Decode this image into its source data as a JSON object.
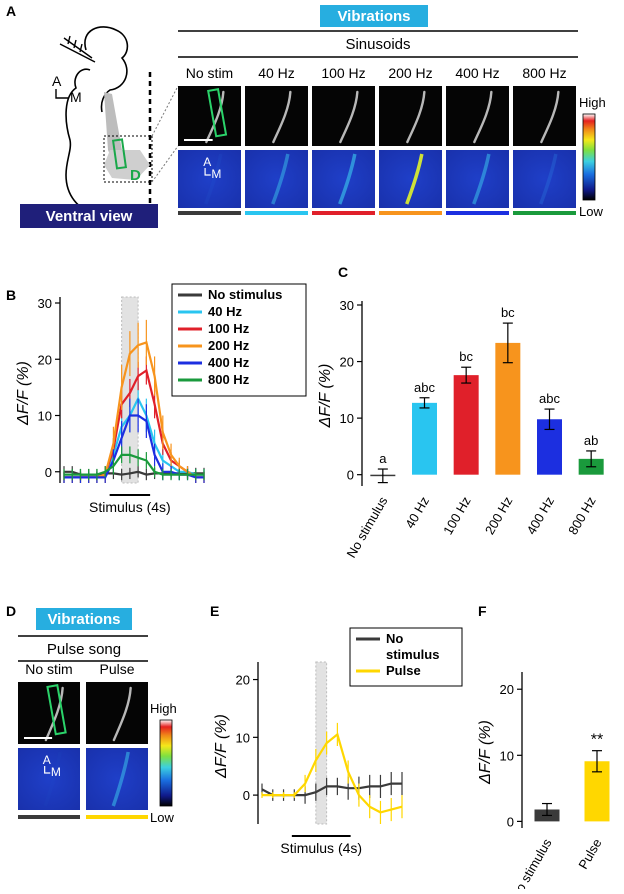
{
  "panels": {
    "A": "A",
    "B": "B",
    "C": "C",
    "D": "D",
    "E": "E",
    "F": "F"
  },
  "panelA": {
    "banner": "Vibrations",
    "subtitle": "Sinusoids",
    "conditions": [
      "No stim",
      "40 Hz",
      "100 Hz",
      "200 Hz",
      "400 Hz",
      "800 Hz"
    ],
    "condition_colors": [
      "#3a3a3a",
      "#29c5f0",
      "#e0202a",
      "#f7941d",
      "#1c2fe0",
      "#1a9a3c"
    ],
    "axes_A": "A",
    "axes_M": "M",
    "roi_label": "D",
    "view_label": "Ventral view",
    "scale_high": "High",
    "scale_low": "Low",
    "inset_A": "A",
    "inset_M": "M"
  },
  "panelD": {
    "banner": "Vibrations",
    "subtitle": "Pulse song",
    "conditions": [
      "No stim",
      "Pulse"
    ],
    "condition_colors": [
      "#3a3a3a",
      "#ffd700"
    ],
    "scale_high": "High",
    "scale_low": "Low",
    "inset_A": "A",
    "inset_M": "M"
  },
  "chart_data": [
    {
      "id": "B",
      "type": "line",
      "ylabel": "ΔF/F (%)",
      "xlabel": "Stimulus (4s)",
      "ylim": [
        -2,
        30
      ],
      "yticks": [
        0,
        10,
        20,
        30
      ],
      "x": [
        0,
        1,
        2,
        3,
        4,
        5,
        6,
        7,
        8,
        9,
        10,
        11,
        12,
        13,
        14,
        15,
        16,
        17
      ],
      "stimulus_window": [
        7,
        9
      ],
      "series": [
        {
          "name": "No stimulus",
          "color": "#3a3a3a",
          "values": [
            0,
            0,
            -0.5,
            -0.5,
            -0.5,
            -0.3,
            -0.3,
            -0.5,
            -0.3,
            0,
            -0.5,
            -0.3,
            -0.3,
            -0.3,
            -0.3,
            -0.3,
            -0.3,
            -0.3
          ],
          "err": [
            1,
            1,
            1,
            1,
            1,
            1,
            1,
            1,
            1,
            1,
            1,
            1,
            1,
            1,
            1,
            1,
            1,
            1
          ]
        },
        {
          "name": "  40 Hz",
          "color": "#29c5f0",
          "values": [
            -1,
            -1,
            -1,
            -1,
            -1,
            -0.5,
            3,
            8,
            10,
            13,
            10,
            5,
            2,
            1,
            0,
            0,
            -0.5,
            -0.5
          ],
          "err": [
            1,
            1,
            1,
            1,
            1,
            1.5,
            2.5,
            3,
            3,
            3,
            3,
            2.5,
            2,
            1.5,
            1.5,
            1,
            1,
            1
          ]
        },
        {
          "name": "100 Hz",
          "color": "#e0202a",
          "values": [
            -1,
            -1,
            -1,
            -1,
            -1,
            -0.5,
            4,
            12,
            14,
            17,
            18,
            12,
            5,
            2,
            1,
            0,
            -1,
            -1
          ],
          "err": [
            1,
            1,
            1,
            1,
            1,
            1.5,
            2,
            2.5,
            2.5,
            2.5,
            2.5,
            2.5,
            2,
            1.5,
            1,
            1,
            1,
            1
          ]
        },
        {
          "name": "200 Hz",
          "color": "#f7941d",
          "values": [
            -1,
            -1,
            -1,
            -1,
            -1,
            -0.5,
            5,
            15,
            21,
            22.5,
            23,
            17,
            7,
            3,
            1,
            0,
            -1,
            -1
          ],
          "err": [
            1,
            1,
            1,
            1,
            1,
            1.5,
            3,
            4,
            4,
            4,
            4,
            3.5,
            3,
            2,
            1.5,
            1,
            1,
            1
          ]
        },
        {
          "name": "400 Hz",
          "color": "#1c2fe0",
          "values": [
            -1,
            -1,
            -1,
            -1,
            -1,
            -1,
            2,
            6,
            10,
            10,
            9,
            3,
            0,
            0,
            -0.5,
            -0.5,
            -1,
            -1
          ],
          "err": [
            1,
            1,
            1,
            1,
            1,
            1,
            2,
            3,
            3,
            3,
            3,
            2,
            1.5,
            1,
            1,
            1,
            1,
            1
          ]
        },
        {
          "name": "800 Hz",
          "color": "#1a9a3c",
          "values": [
            -0.5,
            -0.5,
            -0.5,
            -0.5,
            -0.5,
            0,
            1,
            3,
            3,
            2.5,
            2,
            0,
            -0.5,
            -0.5,
            -0.5,
            -0.5,
            -0.5,
            -0.5
          ],
          "err": [
            1,
            1,
            1,
            1,
            1,
            1,
            1.5,
            1.5,
            1.5,
            1.5,
            1.5,
            1,
            1,
            1,
            1,
            1,
            1,
            1
          ]
        }
      ]
    },
    {
      "id": "C",
      "type": "bar",
      "ylabel": "ΔF/F (%)",
      "ylim": [
        -2,
        30
      ],
      "yticks": [
        0,
        10,
        20,
        30
      ],
      "categories": [
        "No stimulus",
        "40 Hz",
        "100 Hz",
        "200 Hz",
        "400 Hz",
        "800 Hz"
      ],
      "values": [
        -0.2,
        12.7,
        17.6,
        23.3,
        9.8,
        2.8
      ],
      "errors": [
        1.2,
        0.9,
        1.4,
        3.5,
        1.8,
        1.4
      ],
      "colors": [
        "#3a3a3a",
        "#29c5f0",
        "#e0202a",
        "#f7941d",
        "#1c2fe0",
        "#1a9a3c"
      ],
      "labels": [
        "a",
        "abc",
        "bc",
        "bc",
        "abc",
        "ab"
      ]
    },
    {
      "id": "E",
      "type": "line",
      "ylabel": "ΔF/F (%)",
      "xlabel": "Stimulus (4s)",
      "ylim": [
        -5,
        22
      ],
      "yticks": [
        0,
        10,
        20
      ],
      "x": [
        0,
        1,
        2,
        3,
        4,
        5,
        6,
        7,
        8,
        9,
        10,
        11,
        12,
        13
      ],
      "stimulus_window": [
        5,
        6
      ],
      "series": [
        {
          "name": "No\nstimulus",
          "color": "#3a3a3a",
          "values": [
            1,
            0,
            0,
            0,
            0,
            0.5,
            1.5,
            1.5,
            1.2,
            1.2,
            1.5,
            1.5,
            2,
            2
          ],
          "err": [
            1,
            1,
            1,
            1,
            1.5,
            1.5,
            1.5,
            1.5,
            2,
            2,
            2,
            2,
            2,
            2
          ]
        },
        {
          "name": "Pulse",
          "color": "#ffd700",
          "values": [
            0,
            0,
            0,
            0,
            2,
            6,
            9,
            10.5,
            4,
            0,
            -2,
            -3,
            -2.5,
            -2
          ],
          "err": [
            0.5,
            0.5,
            0.5,
            0.5,
            1.5,
            2,
            2,
            2,
            2,
            2,
            2,
            2,
            2,
            2
          ]
        }
      ]
    },
    {
      "id": "F",
      "type": "bar",
      "ylabel": "ΔF/F (%)",
      "ylim": [
        -1,
        22
      ],
      "yticks": [
        0,
        10,
        20
      ],
      "categories": [
        "No stimulus",
        "Pulse"
      ],
      "values": [
        1.8,
        9.1
      ],
      "errors": [
        0.9,
        1.6
      ],
      "colors": [
        "#3a3a3a",
        "#ffd700"
      ],
      "labels": [
        "",
        "**"
      ]
    }
  ],
  "legendB": [
    "No stimulus",
    "  40 Hz",
    "100 Hz",
    "200 Hz",
    "400 Hz",
    "800 Hz"
  ],
  "legendE": [
    "No",
    "stimulus",
    "Pulse"
  ]
}
